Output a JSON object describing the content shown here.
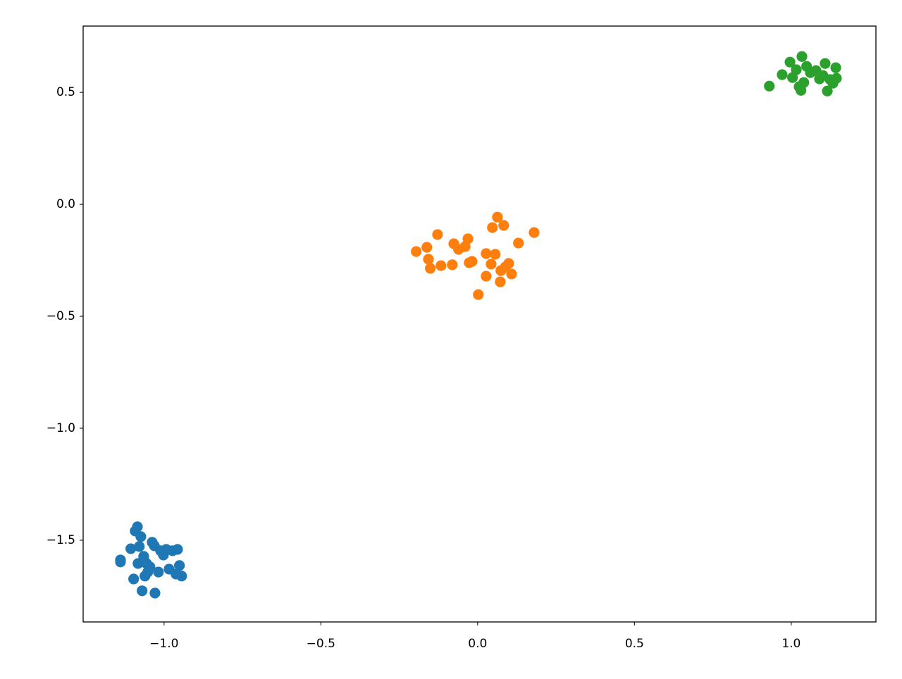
{
  "chart_data": {
    "type": "scatter",
    "xlim": [
      -1.258,
      1.27
    ],
    "ylim": [
      -1.865,
      0.796
    ],
    "xticks": [
      {
        "value": -1,
        "label": "−1.0"
      },
      {
        "value": -0.5,
        "label": "−0.5"
      },
      {
        "value": 0,
        "label": "0.0"
      },
      {
        "value": 0.5,
        "label": "0.5"
      },
      {
        "value": 1,
        "label": "1.0"
      }
    ],
    "yticks": [
      {
        "value": -1.5,
        "label": "−1.5"
      },
      {
        "value": -1,
        "label": "−1.0"
      },
      {
        "value": -0.5,
        "label": "−0.5"
      },
      {
        "value": 0,
        "label": "0.0"
      },
      {
        "value": 0.5,
        "label": "0.5"
      }
    ],
    "grid": false,
    "series": [
      {
        "color": "#1f77b4",
        "x": [
          -1.139,
          -1.139,
          -1.106,
          -1.097,
          -1.092,
          -1.085,
          -1.083,
          -1.079,
          -1.074,
          -1.07,
          -1.065,
          -1.061,
          -1.056,
          -1.052,
          -1.045,
          -1.038,
          -1.031,
          -1.029,
          -1.018,
          -1.011,
          -1.002,
          -0.993,
          -0.984,
          -0.973,
          -0.962,
          -0.957,
          -0.951,
          -0.944
        ],
        "values": [
          -1.588,
          -1.597,
          -1.538,
          -1.673,
          -1.459,
          -1.44,
          -1.604,
          -1.528,
          -1.484,
          -1.726,
          -1.572,
          -1.66,
          -1.604,
          -1.642,
          -1.619,
          -1.509,
          -1.525,
          -1.736,
          -1.642,
          -1.547,
          -1.566,
          -1.541,
          -1.629,
          -1.547,
          -1.651,
          -1.541,
          -1.613,
          -1.66
        ]
      },
      {
        "color": "#ff7f0e",
        "x": [
          -0.196,
          -0.162,
          -0.157,
          -0.151,
          -0.128,
          -0.117,
          -0.081,
          -0.076,
          -0.061,
          -0.04,
          -0.031,
          -0.027,
          -0.018,
          0.002,
          0.027,
          0.027,
          0.043,
          0.047,
          0.056,
          0.063,
          0.072,
          0.074,
          0.083,
          0.088,
          0.099,
          0.108,
          0.13,
          0.18
        ],
        "values": [
          -0.211,
          -0.192,
          -0.245,
          -0.286,
          -0.135,
          -0.274,
          -0.27,
          -0.176,
          -0.201,
          -0.189,
          -0.154,
          -0.261,
          -0.255,
          -0.403,
          -0.22,
          -0.321,
          -0.267,
          -0.104,
          -0.223,
          -0.057,
          -0.346,
          -0.296,
          -0.094,
          -0.28,
          -0.264,
          -0.311,
          -0.173,
          -0.126
        ]
      },
      {
        "color": "#2ca02c",
        "x": [
          0.93,
          0.971,
          0.996,
          1.004,
          1.016,
          1.025,
          1.031,
          1.034,
          1.04,
          1.049,
          1.061,
          1.079,
          1.09,
          1.101,
          1.108,
          1.115,
          1.124,
          1.133,
          1.142,
          1.144
        ],
        "values": [
          0.528,
          0.579,
          0.635,
          0.566,
          0.601,
          0.525,
          0.509,
          0.66,
          0.544,
          0.616,
          0.588,
          0.597,
          0.56,
          0.575,
          0.629,
          0.506,
          0.557,
          0.541,
          0.61,
          0.563
        ]
      }
    ]
  }
}
